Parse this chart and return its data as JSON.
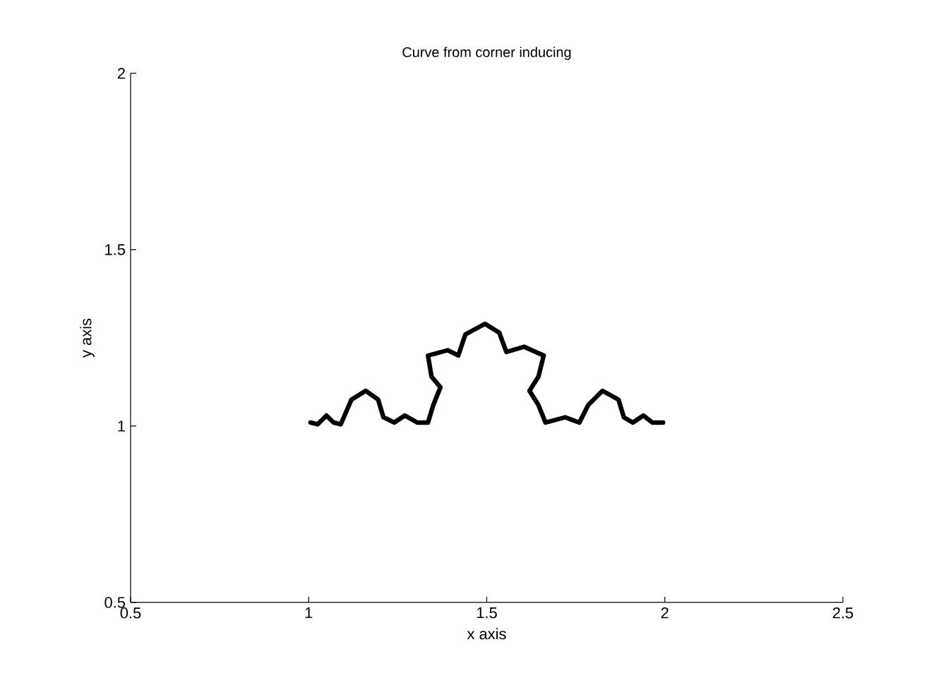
{
  "chart_data": {
    "type": "line",
    "title": "Curve from corner inducing",
    "xlabel": "x axis",
    "ylabel": "y axis",
    "xlim": [
      0.5,
      2.5
    ],
    "ylim": [
      0.5,
      2
    ],
    "xticks": [
      0.5,
      1,
      1.5,
      2,
      2.5
    ],
    "yticks": [
      0.5,
      1,
      1.5,
      2
    ],
    "grid": false,
    "marker": "none",
    "line_style": "solid",
    "series": [
      {
        "color": "#000000",
        "x": [
          1.005,
          1.025,
          1.05,
          1.07,
          1.09,
          1.105,
          1.12,
          1.16,
          1.195,
          1.21,
          1.24,
          1.27,
          1.305,
          1.335,
          1.35,
          1.37,
          1.345,
          1.335,
          1.39,
          1.42,
          1.44,
          1.495,
          1.535,
          1.555,
          1.605,
          1.66,
          1.645,
          1.62,
          1.645,
          1.665,
          1.72,
          1.76,
          1.785,
          1.825,
          1.87,
          1.885,
          1.91,
          1.94,
          1.965,
          1.995
        ],
        "values": [
          1.01,
          1.005,
          1.03,
          1.01,
          1.005,
          1.04,
          1.075,
          1.1,
          1.075,
          1.025,
          1.01,
          1.03,
          1.01,
          1.01,
          1.06,
          1.11,
          1.14,
          1.2,
          1.215,
          1.2,
          1.26,
          1.29,
          1.265,
          1.21,
          1.225,
          1.2,
          1.14,
          1.1,
          1.06,
          1.01,
          1.025,
          1.01,
          1.06,
          1.1,
          1.075,
          1.025,
          1.01,
          1.03,
          1.01,
          1.01
        ]
      }
    ]
  }
}
